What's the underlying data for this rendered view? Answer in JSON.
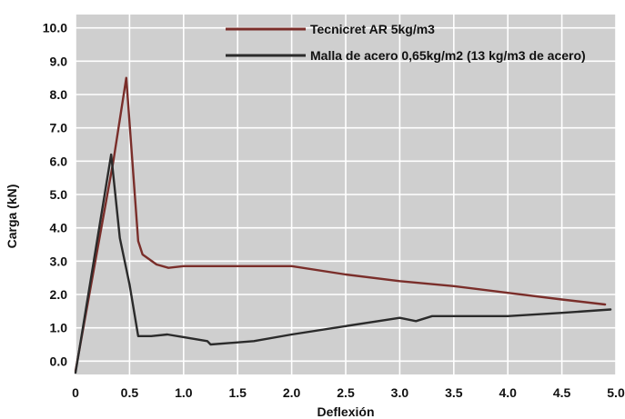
{
  "chart_data": {
    "type": "line",
    "xlabel": "Deflexión",
    "ylabel": "Carga (kN)",
    "xlim": [
      0,
      5.0
    ],
    "ylim": [
      -0.4,
      10.4
    ],
    "x_ticks": [
      "0",
      "0.5",
      "1.0",
      "1.5",
      "2.0",
      "2.5",
      "3.0",
      "3.5",
      "4.0",
      "4.5",
      "5.0"
    ],
    "x_tick_values": [
      0,
      0.5,
      1.0,
      1.5,
      2.0,
      2.5,
      3.0,
      3.5,
      4.0,
      4.5,
      5.0
    ],
    "y_ticks": [
      "0.0",
      "1.0",
      "2.0",
      "3.0",
      "4.0",
      "5.0",
      "6.0",
      "7.0",
      "8.0",
      "9.0",
      "10.0"
    ],
    "y_tick_values": [
      0,
      1,
      2,
      3,
      4,
      5,
      6,
      7,
      8,
      9,
      10
    ],
    "grid": true,
    "legend_position": "top-right",
    "series": [
      {
        "name": "Tecnicret AR  5kg/m3",
        "color": "#7a2e2a",
        "x": [
          0.0,
          0.35,
          0.47,
          0.58,
          0.62,
          0.75,
          0.86,
          1.0,
          1.1,
          1.5,
          2.0,
          2.5,
          3.0,
          3.5,
          4.0,
          4.5,
          4.9
        ],
        "y": [
          -0.3,
          6.0,
          8.5,
          3.6,
          3.2,
          2.9,
          2.8,
          2.85,
          2.85,
          2.85,
          2.85,
          2.6,
          2.4,
          2.25,
          2.05,
          1.85,
          1.7
        ]
      },
      {
        "name": "Malla de acero 0,65kg/m2 (13 kg/m3 de acero)",
        "color": "#2b2b2b",
        "x": [
          0.0,
          0.33,
          0.41,
          0.5,
          0.58,
          0.7,
          0.85,
          1.0,
          1.22,
          1.25,
          1.45,
          1.65,
          2.0,
          2.5,
          3.0,
          3.15,
          3.3,
          3.5,
          4.0,
          4.5,
          4.95
        ],
        "y": [
          -0.35,
          6.2,
          3.7,
          2.3,
          0.75,
          0.75,
          0.8,
          0.72,
          0.6,
          0.5,
          0.55,
          0.6,
          0.8,
          1.05,
          1.3,
          1.2,
          1.35,
          1.35,
          1.35,
          1.45,
          1.55
        ]
      }
    ]
  }
}
